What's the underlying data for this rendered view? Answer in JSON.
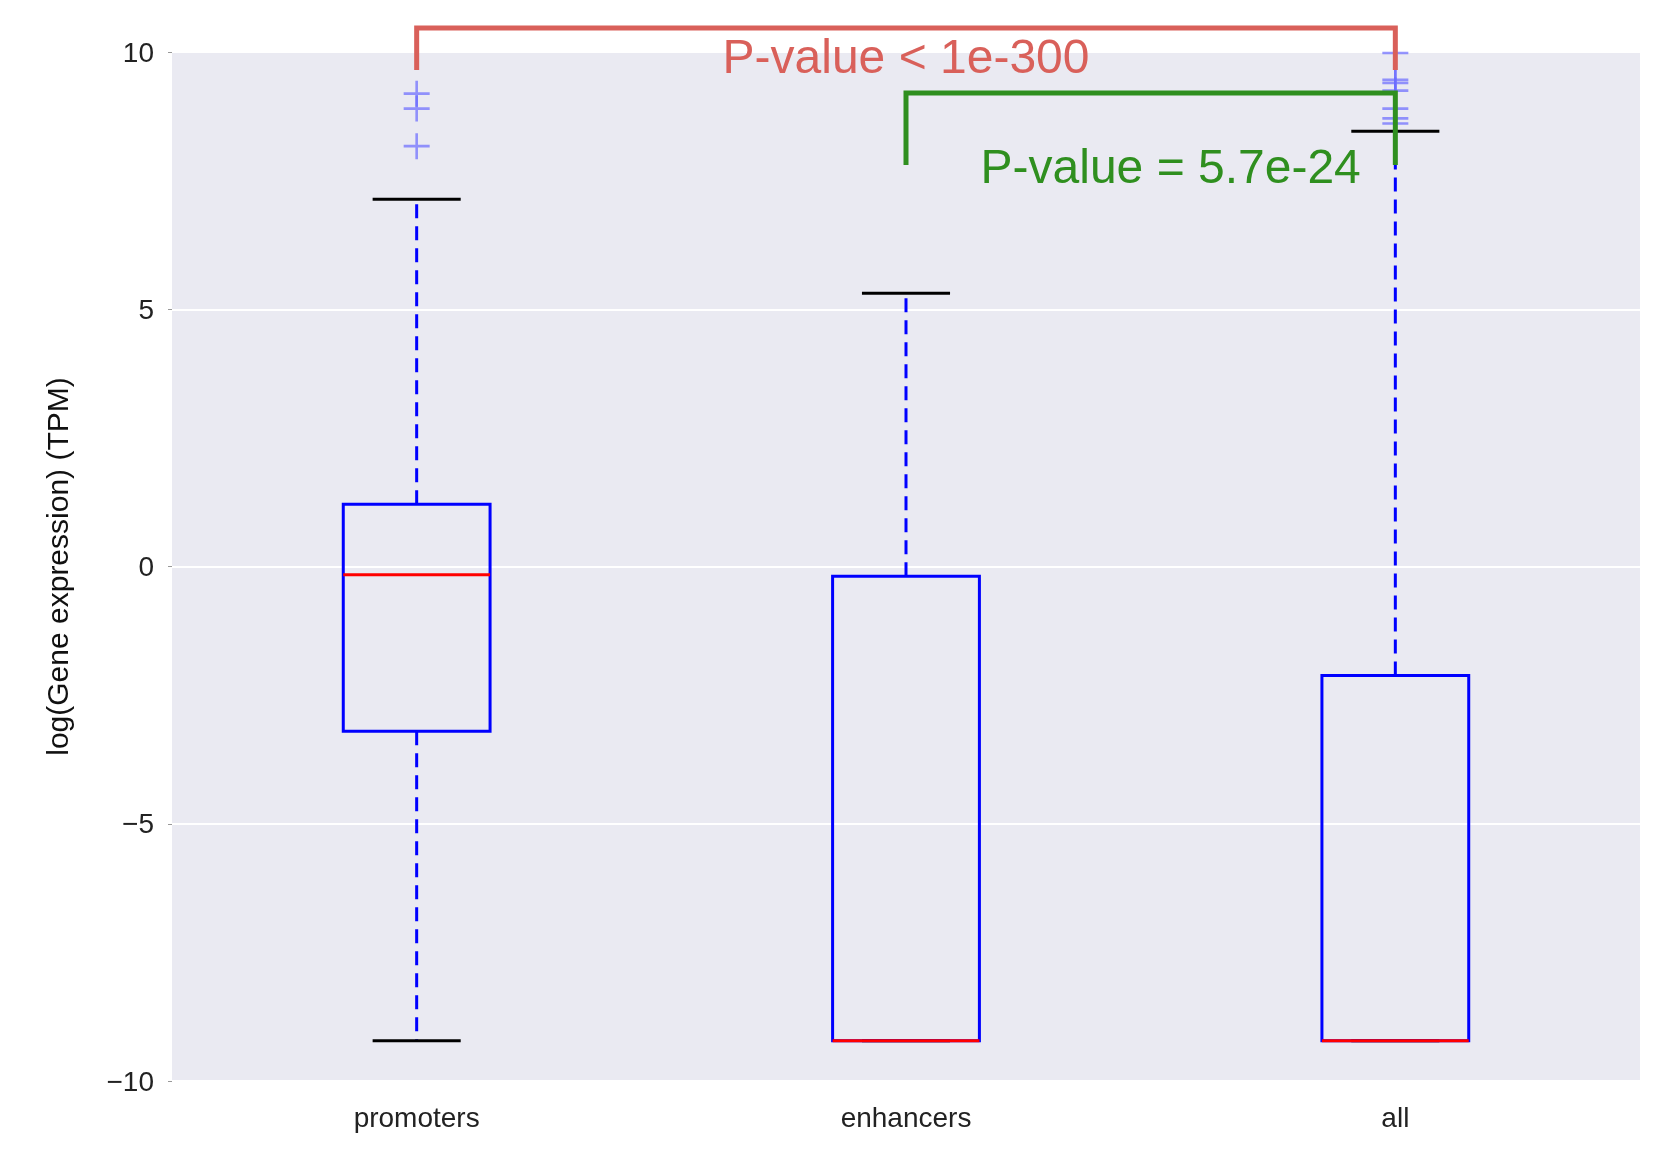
{
  "chart_data": {
    "type": "box",
    "ylabel": "log(Gene expression) (TPM)",
    "categories": [
      "promoters",
      "enhancers",
      "all"
    ],
    "boxes": [
      {
        "low": -9.22,
        "q1": -3.2,
        "median": -0.16,
        "q3": 1.21,
        "high": 7.14,
        "outliers": [
          8.17,
          8.9,
          9.19
        ]
      },
      {
        "low": -9.22,
        "q1": -9.22,
        "median": -9.22,
        "q3": -0.19,
        "high": 5.31
      },
      {
        "low": -9.22,
        "q1": -9.22,
        "median": -9.22,
        "q3": -2.12,
        "high": 8.46,
        "outliers": [
          8.61,
          8.71,
          8.9,
          9.25,
          9.4,
          9.46,
          9.98
        ]
      }
    ],
    "ylim": [
      -10,
      10
    ],
    "yticks": [
      {
        "value": -10,
        "label": "−10"
      },
      {
        "value": -5,
        "label": "−5"
      },
      0,
      5,
      10
    ],
    "grid": "y",
    "annotations": [
      "P-value < 1e-300",
      "P-value = 5.7e-24"
    ]
  }
}
